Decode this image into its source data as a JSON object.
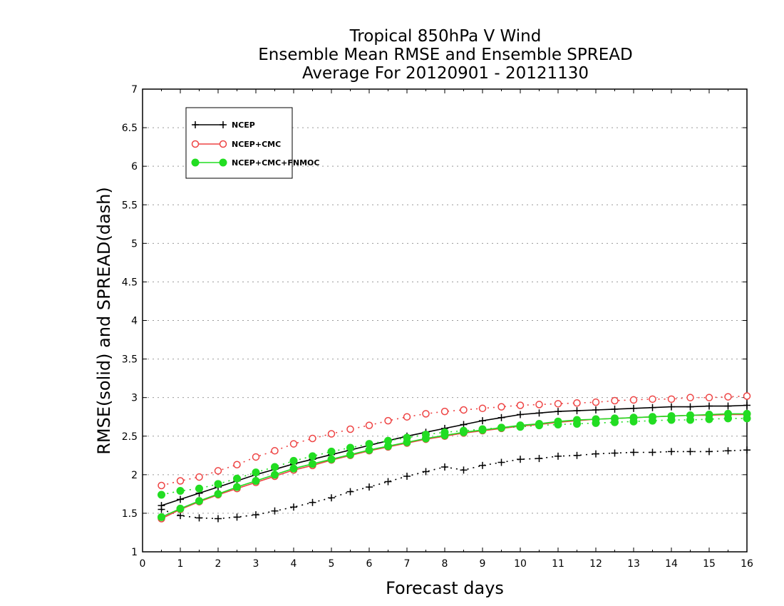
{
  "chart_data": {
    "type": "line",
    "title": [
      "Tropical 850hPa V Wind",
      "Ensemble Mean RMSE and Ensemble SPREAD",
      "Average For 20120901 - 20121130"
    ],
    "xlabel": "Forecast days",
    "ylabel": "RMSE(solid) and SPREAD(dash)",
    "xlim": [
      0,
      16
    ],
    "ylim": [
      1,
      7
    ],
    "xticks": [
      "0",
      "1",
      "2",
      "3",
      "4",
      "5",
      "6",
      "7",
      "8",
      "9",
      "10",
      "11",
      "12",
      "13",
      "14",
      "15",
      "16"
    ],
    "yticks": [
      "1",
      "1.5",
      "2",
      "2.5",
      "3",
      "3.5",
      "4",
      "4.5",
      "5",
      "5.5",
      "6",
      "6.5",
      "7"
    ],
    "grid": "horizontal dotted",
    "legend_position": "top-left",
    "x": [
      0.5,
      1,
      1.5,
      2,
      2.5,
      3,
      3.5,
      4,
      4.5,
      5,
      5.5,
      6,
      6.5,
      7,
      7.5,
      8,
      8.5,
      9,
      9.5,
      10,
      10.5,
      11,
      11.5,
      12,
      12.5,
      13,
      13.5,
      14,
      14.5,
      15,
      15.5,
      16
    ],
    "series": [
      {
        "name": "NCEP",
        "color": "#000000",
        "marker": "plus",
        "rmse": [
          1.6,
          1.68,
          1.76,
          1.84,
          1.92,
          2.0,
          2.07,
          2.14,
          2.2,
          2.26,
          2.32,
          2.38,
          2.44,
          2.5,
          2.55,
          2.6,
          2.65,
          2.7,
          2.74,
          2.78,
          2.8,
          2.82,
          2.83,
          2.84,
          2.85,
          2.86,
          2.87,
          2.88,
          2.88,
          2.89,
          2.89,
          2.9
        ],
        "spread": [
          1.55,
          1.47,
          1.44,
          1.43,
          1.45,
          1.48,
          1.53,
          1.58,
          1.64,
          1.7,
          1.78,
          1.84,
          1.91,
          1.98,
          2.04,
          2.1,
          2.06,
          2.12,
          2.16,
          2.2,
          2.21,
          2.24,
          2.25,
          2.27,
          2.28,
          2.29,
          2.29,
          2.3,
          2.3,
          2.3,
          2.31,
          2.32
        ]
      },
      {
        "name": "NCEP+CMC",
        "color": "#ee4444",
        "marker": "open-circle",
        "rmse": [
          1.43,
          1.55,
          1.65,
          1.74,
          1.82,
          1.9,
          1.98,
          2.06,
          2.12,
          2.19,
          2.25,
          2.31,
          2.36,
          2.41,
          2.46,
          2.5,
          2.54,
          2.57,
          2.6,
          2.63,
          2.65,
          2.68,
          2.7,
          2.72,
          2.73,
          2.74,
          2.75,
          2.76,
          2.77,
          2.77,
          2.78,
          2.78
        ],
        "spread": [
          1.86,
          1.92,
          1.97,
          2.05,
          2.13,
          2.23,
          2.31,
          2.4,
          2.47,
          2.53,
          2.59,
          2.64,
          2.7,
          2.75,
          2.79,
          2.82,
          2.84,
          2.86,
          2.88,
          2.9,
          2.91,
          2.92,
          2.93,
          2.94,
          2.96,
          2.97,
          2.98,
          2.98,
          3.0,
          3.0,
          3.01,
          3.02
        ]
      },
      {
        "name": "NCEP+CMC+FNMOC",
        "color": "#22dd22",
        "marker": "filled-circle",
        "rmse": [
          1.45,
          1.56,
          1.66,
          1.75,
          1.84,
          1.92,
          2.0,
          2.08,
          2.14,
          2.2,
          2.26,
          2.32,
          2.37,
          2.42,
          2.47,
          2.51,
          2.55,
          2.58,
          2.61,
          2.64,
          2.66,
          2.69,
          2.71,
          2.72,
          2.73,
          2.74,
          2.75,
          2.76,
          2.77,
          2.78,
          2.79,
          2.79
        ],
        "spread": [
          1.74,
          1.79,
          1.82,
          1.88,
          1.95,
          2.03,
          2.1,
          2.18,
          2.24,
          2.3,
          2.35,
          2.4,
          2.44,
          2.48,
          2.52,
          2.55,
          2.57,
          2.59,
          2.61,
          2.62,
          2.64,
          2.65,
          2.66,
          2.67,
          2.68,
          2.69,
          2.7,
          2.71,
          2.71,
          2.72,
          2.73,
          2.73
        ]
      }
    ]
  }
}
